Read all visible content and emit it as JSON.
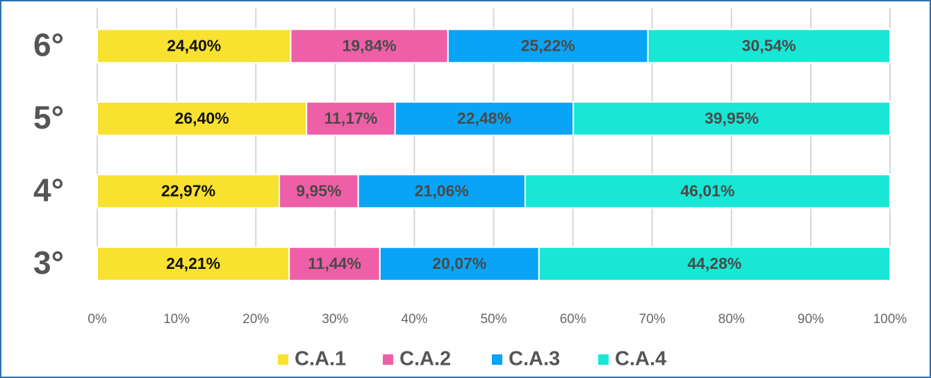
{
  "chart_data": {
    "type": "stacked_bar_horizontal",
    "categories": [
      "6°",
      "5°",
      "4°",
      "3°"
    ],
    "series": [
      {
        "name": "C.A.1",
        "color": "#f8e12f",
        "label_color": "#111111",
        "values": [
          24.4,
          26.4,
          22.97,
          24.21
        ],
        "value_labels": [
          "24,40%",
          "26,40%",
          "22,97%",
          "24,21%"
        ]
      },
      {
        "name": "C.A.2",
        "color": "#ee5fa7",
        "label_color": "#4a4a4a",
        "values": [
          19.84,
          11.17,
          9.95,
          11.44
        ],
        "value_labels": [
          "19,84%",
          "11,17%",
          "9,95%",
          "11,44%"
        ]
      },
      {
        "name": "C.A.3",
        "color": "#0aa4f6",
        "label_color": "#4a4a4a",
        "values": [
          25.22,
          22.48,
          21.06,
          20.07
        ],
        "value_labels": [
          "25,22%",
          "22,48%",
          "21,06%",
          "20,07%"
        ]
      },
      {
        "name": "C.A.4",
        "color": "#18e7d5",
        "label_color": "#4a4a4a",
        "values": [
          30.54,
          39.95,
          46.01,
          44.28
        ],
        "value_labels": [
          "30,54%",
          "39,95%",
          "46,01%",
          "44,28%"
        ]
      }
    ],
    "xlim": [
      0,
      100
    ],
    "xticks": [
      {
        "value": 0,
        "label": "0%"
      },
      {
        "value": 10,
        "label": "10%"
      },
      {
        "value": 20,
        "label": "20%"
      },
      {
        "value": 30,
        "label": "30%"
      },
      {
        "value": 40,
        "label": "40%"
      },
      {
        "value": 50,
        "label": "50%"
      },
      {
        "value": 60,
        "label": "60%"
      },
      {
        "value": 70,
        "label": "70%"
      },
      {
        "value": 80,
        "label": "80%"
      },
      {
        "value": 90,
        "label": "90%"
      },
      {
        "value": 100,
        "label": "100%"
      }
    ],
    "grid": true,
    "legend": "bottom"
  }
}
